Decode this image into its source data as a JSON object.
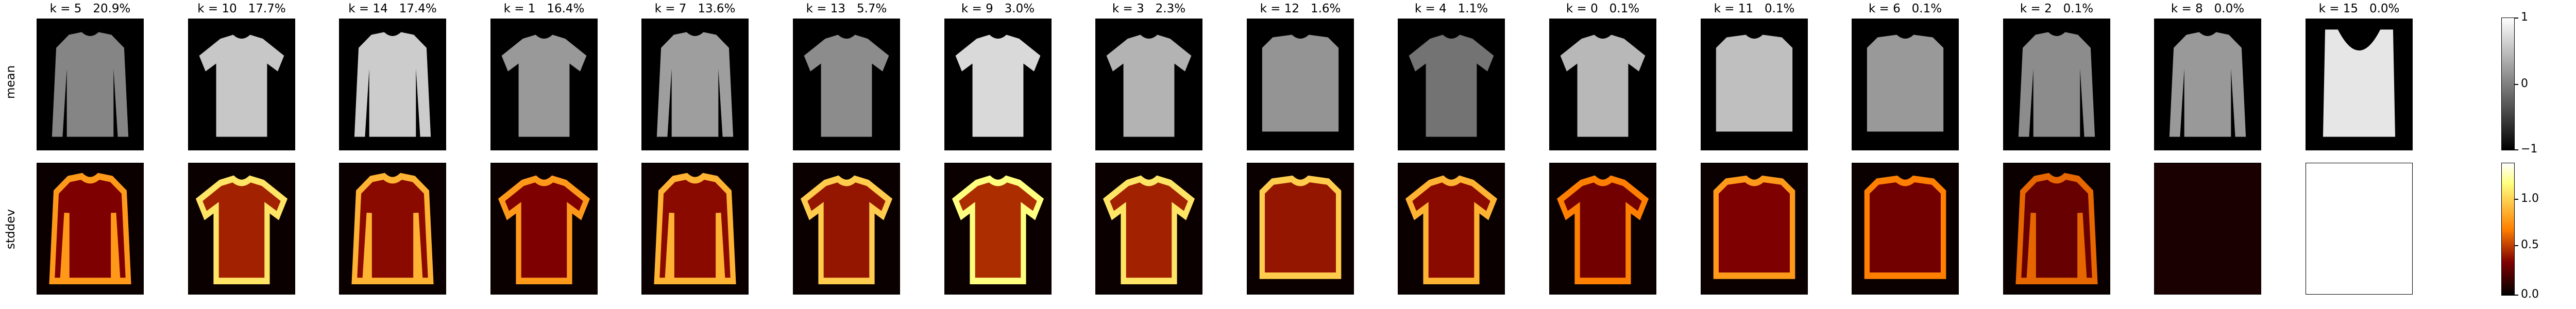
{
  "row_labels": [
    "mean",
    "stddev"
  ],
  "clusters": [
    {
      "k": "5",
      "pct": "20.9%",
      "shape": "longsleeve",
      "mean_gray": 0.52,
      "std_level": 0.55
    },
    {
      "k": "10",
      "pct": "17.7%",
      "shape": "tshirt",
      "mean_gray": 0.78,
      "std_level": 0.7
    },
    {
      "k": "14",
      "pct": "17.4%",
      "shape": "longsleeve",
      "mean_gray": 0.8,
      "std_level": 0.6
    },
    {
      "k": "1",
      "pct": "16.4%",
      "shape": "tshirt",
      "mean_gray": 0.6,
      "std_level": 0.55
    },
    {
      "k": "7",
      "pct": "13.6%",
      "shape": "longsleeve",
      "mean_gray": 0.62,
      "std_level": 0.6
    },
    {
      "k": "13",
      "pct": "5.7%",
      "shape": "tshirt",
      "mean_gray": 0.55,
      "std_level": 0.65
    },
    {
      "k": "9",
      "pct": "3.0%",
      "shape": "tshirt",
      "mean_gray": 0.85,
      "std_level": 0.75
    },
    {
      "k": "3",
      "pct": "2.3%",
      "shape": "tshirt",
      "mean_gray": 0.7,
      "std_level": 0.7
    },
    {
      "k": "12",
      "pct": "1.6%",
      "shape": "box",
      "mean_gray": 0.58,
      "std_level": 0.65
    },
    {
      "k": "4",
      "pct": "1.1%",
      "shape": "tshirt",
      "mean_gray": 0.45,
      "std_level": 0.6
    },
    {
      "k": "0",
      "pct": "0.1%",
      "shape": "tshirt",
      "mean_gray": 0.72,
      "std_level": 0.5
    },
    {
      "k": "11",
      "pct": "0.1%",
      "shape": "box",
      "mean_gray": 0.75,
      "std_level": 0.55
    },
    {
      "k": "6",
      "pct": "0.1%",
      "shape": "box",
      "mean_gray": 0.6,
      "std_level": 0.5
    },
    {
      "k": "2",
      "pct": "0.1%",
      "shape": "longsleeve",
      "mean_gray": 0.55,
      "std_level": 0.45
    },
    {
      "k": "8",
      "pct": "0.0%",
      "shape": "longsleeve",
      "mean_gray": 0.6,
      "std_level": 0.0
    },
    {
      "k": "15",
      "pct": "0.0%",
      "shape": "tank",
      "mean_gray": 0.9,
      "std_level": 1.0
    }
  ],
  "colorbars": {
    "mean": {
      "ticks": [
        "1",
        "0",
        "−1"
      ],
      "colormap": "gray"
    },
    "stddev": {
      "ticks": [
        "1.0",
        "0.5",
        "0.0"
      ],
      "colormap": "afmhot"
    }
  },
  "colors": {
    "background": "#000000",
    "frame": "#000000"
  }
}
